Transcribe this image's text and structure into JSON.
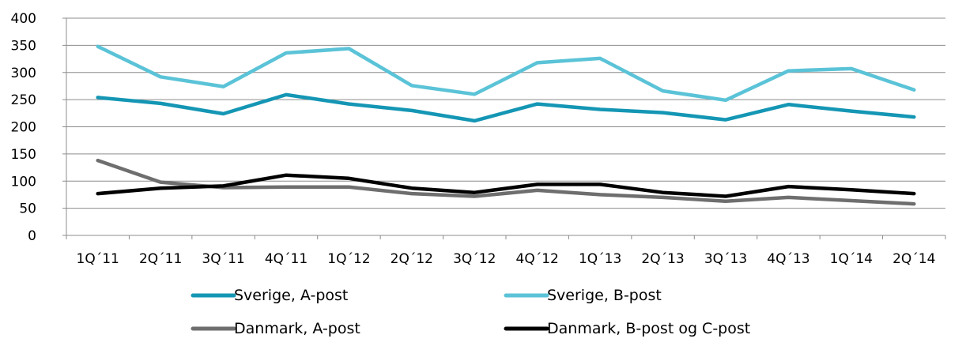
{
  "chart_data": {
    "type": "line",
    "categories": [
      "1Q´11",
      "2Q´11",
      "3Q´11",
      "4Q´11",
      "1Q´12",
      "2Q´12",
      "3Q´12",
      "4Q´12",
      "1Q´13",
      "2Q´13",
      "3Q´13",
      "4Q´13",
      "1Q´14",
      "2Q´14"
    ],
    "y_ticks": [
      0,
      50,
      100,
      150,
      200,
      250,
      300,
      350,
      400
    ],
    "ylim": [
      0,
      400
    ],
    "grid": true,
    "legend_position": "bottom",
    "series": [
      {
        "name": "Sverige, A-post",
        "color": "#1496b4",
        "values": [
          254,
          243,
          224,
          259,
          242,
          230,
          211,
          242,
          232,
          226,
          213,
          241,
          229,
          218
        ]
      },
      {
        "name": "Sverige, B-post",
        "color": "#5bc3d7",
        "values": [
          348,
          292,
          274,
          336,
          344,
          276,
          260,
          318,
          326,
          266,
          249,
          303,
          307,
          268
        ]
      },
      {
        "name": "Danmark, A-post",
        "color": "#6e6e6e",
        "values": [
          138,
          98,
          88,
          89,
          89,
          77,
          72,
          83,
          75,
          70,
          63,
          70,
          64,
          58
        ]
      },
      {
        "name": "Danmark, B-post og C-post",
        "color": "#000000",
        "values": [
          77,
          87,
          91,
          111,
          105,
          87,
          79,
          94,
          94,
          79,
          72,
          90,
          84,
          77
        ]
      }
    ]
  }
}
